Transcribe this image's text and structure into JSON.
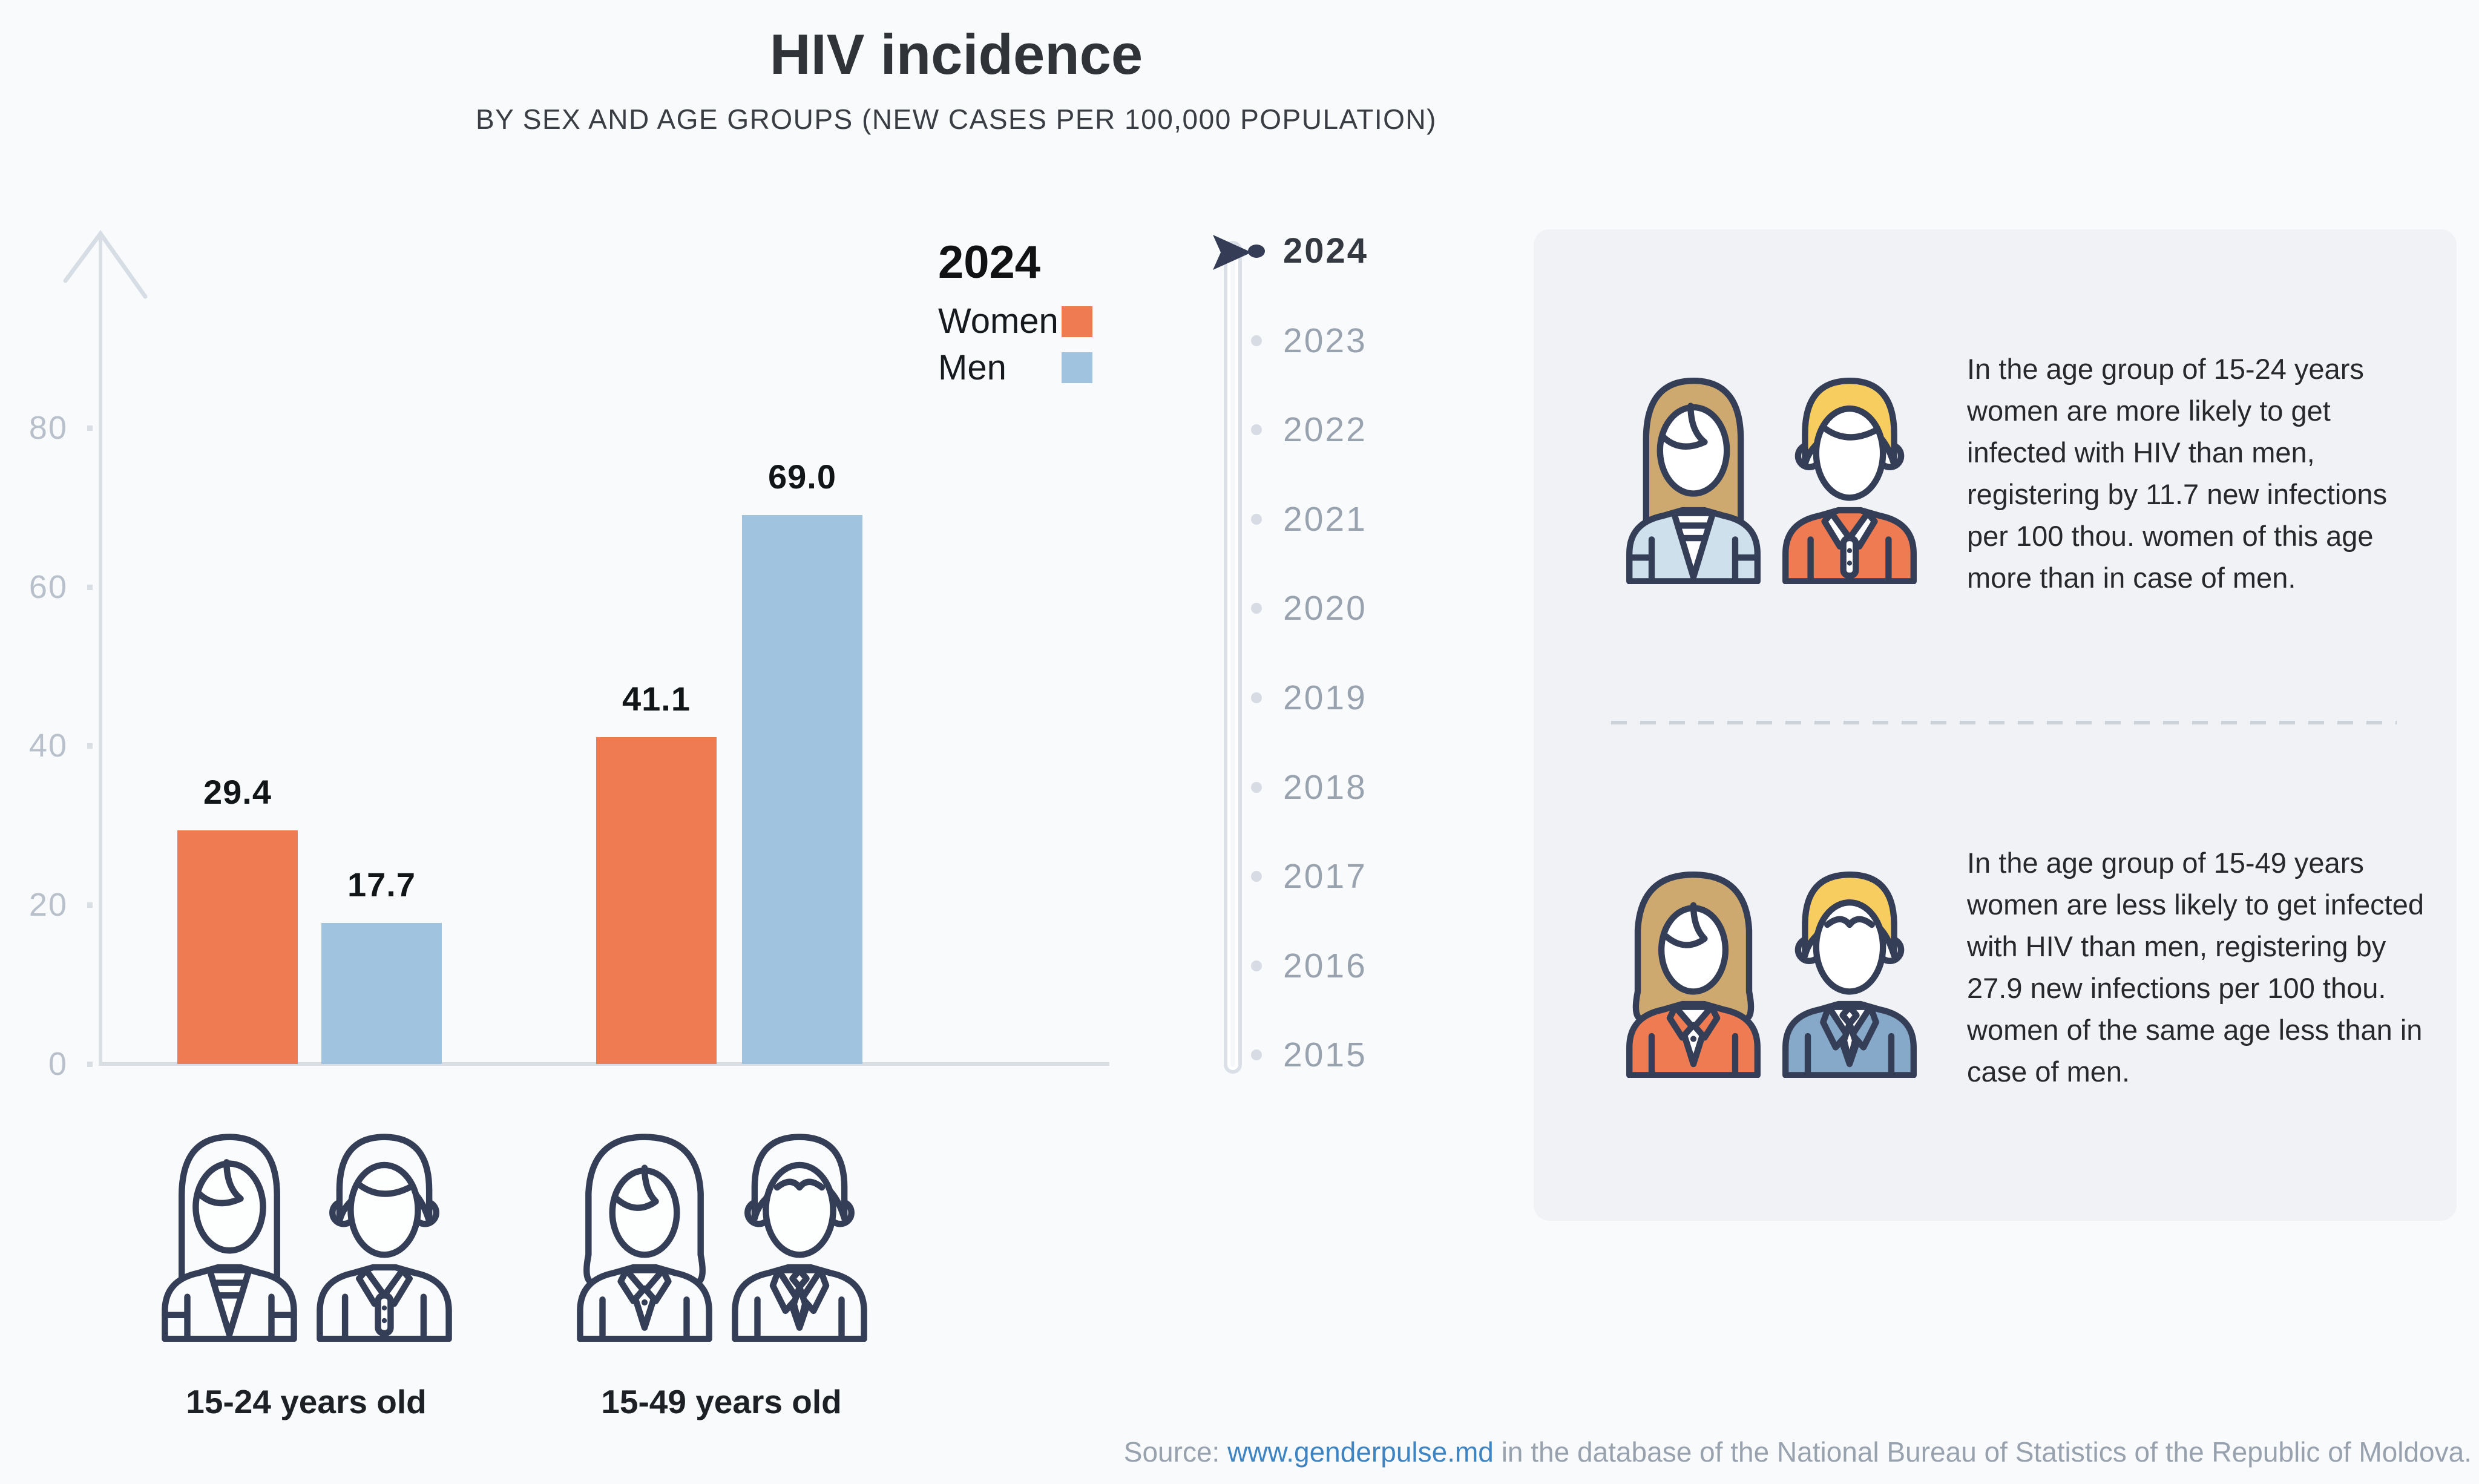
{
  "header": {
    "title": "HIV incidence",
    "subtitle": "BY SEX AND AGE GROUPS (NEW CASES PER 100,000 POPULATION)"
  },
  "chart_data": {
    "type": "bar",
    "title": "HIV incidence",
    "subtitle": "BY SEX AND AGE GROUPS (NEW CASES PER 100,000 POPULATION)",
    "selected_year": "2024",
    "categories": [
      "15-24 years old",
      "15-49 years old"
    ],
    "series": [
      {
        "name": "Women",
        "color": "#EE7B51",
        "values": [
          29.4,
          41.1
        ]
      },
      {
        "name": "Men",
        "color": "#A0C3DF",
        "values": [
          17.7,
          69.0
        ]
      }
    ],
    "value_labels": [
      "29.4",
      "17.7",
      "41.1",
      "69.0"
    ],
    "xlabel": "",
    "ylabel": "",
    "ylim": [
      0,
      80
    ],
    "yticks": [
      0,
      20,
      40,
      60,
      80
    ],
    "grid": false,
    "legend_position": "top-right"
  },
  "legend": {
    "year_label": "2024",
    "items": [
      {
        "label": "Women",
        "color": "#EE7B51"
      },
      {
        "label": "Men",
        "color": "#A0C3DF"
      }
    ]
  },
  "timeline": {
    "selected": "2024",
    "years": [
      "2024",
      "2023",
      "2022",
      "2021",
      "2020",
      "2019",
      "2018",
      "2017",
      "2016",
      "2015"
    ]
  },
  "insights": {
    "block1": {
      "icons": [
        "young-woman",
        "young-man"
      ],
      "text": "In the age group of 15-24 years women are more likely to get infected with HIV than men, registering by 11.7 new infections per 100 thou. women of this age more than in case of men."
    },
    "block2": {
      "icons": [
        "adult-woman",
        "adult-man"
      ],
      "text": "In the age group of 15-49 years women are less likely to get infected with HIV than men, registering by 27.9 new infections per 100 thou. women of the same age less than in case of men."
    }
  },
  "source": {
    "label": "Source:",
    "link_text": "www.genderpulse.md",
    "suffix": "in the database of the National Bureau of Statistics of the Republic of Moldova."
  }
}
